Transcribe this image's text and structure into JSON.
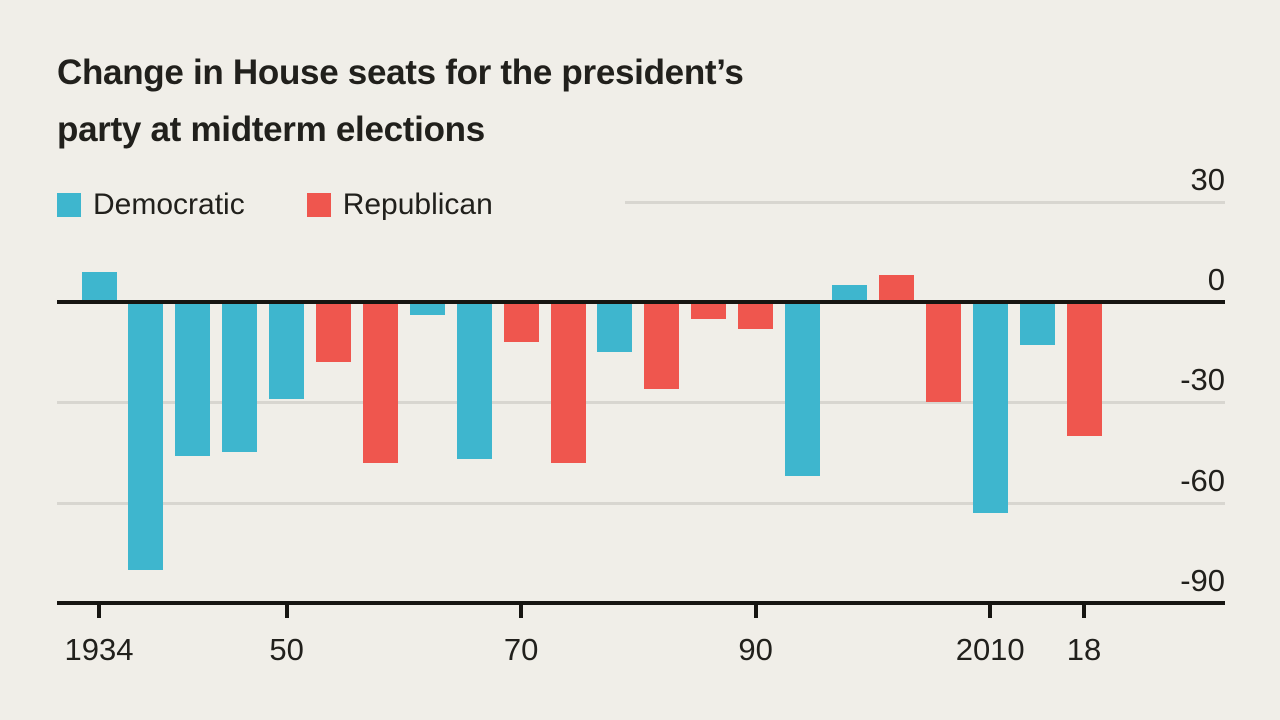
{
  "title": {
    "line1": "Change in House seats for the president’s",
    "line2": "party at midterm elections"
  },
  "colors": {
    "background": "#F0EEE8",
    "text": "#21201C",
    "gridline": "#D8D6D0",
    "axis": "#161511",
    "democratic": "#3EB6CE",
    "republican": "#EF564E"
  },
  "chart_data": {
    "type": "bar",
    "title": "Change in House seats for the president’s party at midterm elections",
    "xlabel": "",
    "ylabel": "Change in House seats",
    "ylim": [
      -90,
      30
    ],
    "grid": true,
    "legend_position": "top-left",
    "y_ticks": [
      30,
      0,
      -30,
      -60,
      -90
    ],
    "x_ticks": [
      {
        "year": 1934,
        "label": "1934"
      },
      {
        "year": 1950,
        "label": "50"
      },
      {
        "year": 1970,
        "label": "70"
      },
      {
        "year": 1990,
        "label": "90"
      },
      {
        "year": 2010,
        "label": "2010"
      },
      {
        "year": 2018,
        "label": "18"
      }
    ],
    "series": [
      {
        "name": "Democratic",
        "color": "#3EB6CE"
      },
      {
        "name": "Republican",
        "color": "#EF564E"
      }
    ],
    "bars": [
      {
        "year": 1934,
        "party": "Democratic",
        "value": 9
      },
      {
        "year": 1938,
        "party": "Democratic",
        "value": -80
      },
      {
        "year": 1942,
        "party": "Democratic",
        "value": -46
      },
      {
        "year": 1946,
        "party": "Democratic",
        "value": -45
      },
      {
        "year": 1950,
        "party": "Democratic",
        "value": -29
      },
      {
        "year": 1954,
        "party": "Republican",
        "value": -18
      },
      {
        "year": 1958,
        "party": "Republican",
        "value": -48
      },
      {
        "year": 1962,
        "party": "Democratic",
        "value": -4
      },
      {
        "year": 1966,
        "party": "Democratic",
        "value": -47
      },
      {
        "year": 1970,
        "party": "Republican",
        "value": -12
      },
      {
        "year": 1974,
        "party": "Republican",
        "value": -48
      },
      {
        "year": 1978,
        "party": "Democratic",
        "value": -15
      },
      {
        "year": 1982,
        "party": "Republican",
        "value": -26
      },
      {
        "year": 1986,
        "party": "Republican",
        "value": -5
      },
      {
        "year": 1990,
        "party": "Republican",
        "value": -8
      },
      {
        "year": 1994,
        "party": "Democratic",
        "value": -52
      },
      {
        "year": 1998,
        "party": "Democratic",
        "value": 5
      },
      {
        "year": 2002,
        "party": "Republican",
        "value": 8
      },
      {
        "year": 2006,
        "party": "Republican",
        "value": -30
      },
      {
        "year": 2010,
        "party": "Democratic",
        "value": -63
      },
      {
        "year": 2014,
        "party": "Democratic",
        "value": -13
      },
      {
        "year": 2018,
        "party": "Republican",
        "value": -40
      }
    ]
  }
}
